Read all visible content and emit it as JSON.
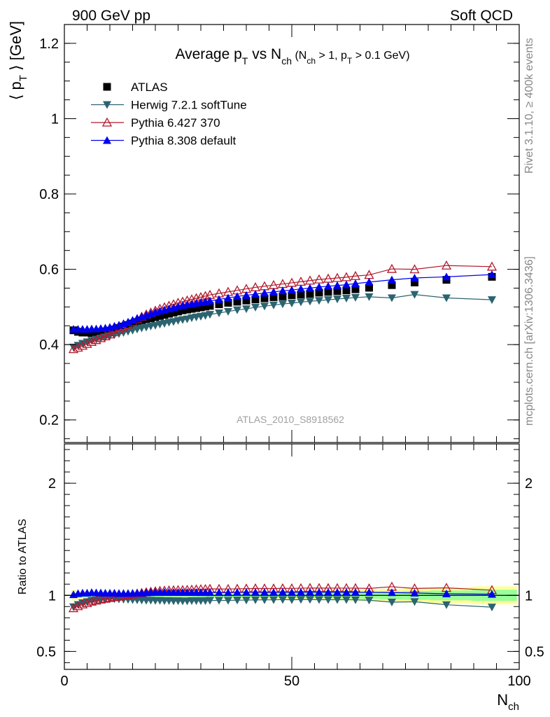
{
  "header": {
    "left": "900 GeV pp",
    "right": "Soft QCD"
  },
  "side_labels": {
    "top": "Rivet 3.1.10, ≥ 400k events",
    "bottom": "mcplots.cern.ch [arXiv:1306.3436]"
  },
  "chart_data": [
    {
      "type": "scatter",
      "panel": "main",
      "title_parts": {
        "main": "Average p",
        "sub_t": "T",
        "vs": " vs N",
        "sub_ch": "ch",
        "cut_open": " (N",
        "cut_sub_ch": "ch",
        "cut_mid": " > 1, p",
        "cut_sub_t": "T",
        "cut_close": " > 0.1 GeV)"
      },
      "ylabel_parts": {
        "open": "⟨ p",
        "sub": "T",
        "close": " ⟩ [GeV]"
      },
      "watermark": "ATLAS_2010_S8918562",
      "xlim": [
        0,
        100
      ],
      "ylim": [
        0.14,
        1.25
      ],
      "yticks": [
        {
          "value": 0.2,
          "label": "0.2"
        },
        {
          "value": 0.4,
          "label": "0.4"
        },
        {
          "value": 0.6,
          "label": "0.6"
        },
        {
          "value": 0.8,
          "label": "0.8"
        },
        {
          "value": 1.0,
          "label": "1"
        },
        {
          "value": 1.2,
          "label": "1.2"
        }
      ],
      "legend_position": "top-left",
      "series": [
        {
          "name": "ATLAS",
          "color": "#000000",
          "marker": "square",
          "line": false,
          "x": [
            2,
            3,
            4,
            5,
            6,
            7,
            8,
            9,
            10,
            11,
            12,
            13,
            14,
            15,
            16,
            17,
            18,
            19,
            20,
            21,
            22,
            23,
            24,
            25,
            26,
            27,
            28,
            29,
            30,
            31,
            32,
            34,
            36,
            38,
            40,
            42,
            44,
            46,
            48,
            50,
            52,
            54,
            56,
            58,
            60,
            62,
            64,
            67,
            72,
            77,
            84,
            94
          ],
          "y": [
            0.438,
            0.434,
            0.432,
            0.432,
            0.431,
            0.432,
            0.433,
            0.435,
            0.437,
            0.44,
            0.444,
            0.448,
            0.452,
            0.456,
            0.46,
            0.464,
            0.467,
            0.47,
            0.473,
            0.476,
            0.479,
            0.482,
            0.485,
            0.488,
            0.491,
            0.493,
            0.495,
            0.497,
            0.499,
            0.501,
            0.503,
            0.507,
            0.511,
            0.514,
            0.517,
            0.52,
            0.523,
            0.526,
            0.528,
            0.531,
            0.533,
            0.535,
            0.538,
            0.54,
            0.542,
            0.544,
            0.547,
            0.551,
            0.558,
            0.565,
            0.572,
            0.58
          ]
        },
        {
          "name": "Herwig 7.2.1 softTune",
          "color": "#2b6470",
          "marker": "triangle-down",
          "line": true,
          "x": [
            2,
            3,
            4,
            5,
            6,
            7,
            8,
            9,
            10,
            11,
            12,
            13,
            14,
            15,
            16,
            17,
            18,
            19,
            20,
            21,
            22,
            23,
            24,
            25,
            26,
            27,
            28,
            29,
            30,
            31,
            32,
            34,
            36,
            38,
            40,
            42,
            44,
            46,
            48,
            50,
            52,
            54,
            56,
            58,
            60,
            62,
            64,
            67,
            72,
            77,
            84,
            94
          ],
          "y": [
            0.393,
            0.398,
            0.403,
            0.407,
            0.411,
            0.414,
            0.417,
            0.42,
            0.423,
            0.426,
            0.429,
            0.432,
            0.435,
            0.438,
            0.441,
            0.444,
            0.446,
            0.449,
            0.451,
            0.454,
            0.456,
            0.459,
            0.461,
            0.464,
            0.466,
            0.468,
            0.471,
            0.473,
            0.475,
            0.477,
            0.48,
            0.484,
            0.488,
            0.492,
            0.495,
            0.499,
            0.502,
            0.505,
            0.508,
            0.51,
            0.513,
            0.515,
            0.517,
            0.519,
            0.521,
            0.523,
            0.525,
            0.527,
            0.524,
            0.533,
            0.524,
            0.519
          ]
        },
        {
          "name": "Pythia 6.427 370",
          "color": "#b2182b",
          "marker": "triangle-up-open",
          "line": true,
          "x": [
            2,
            3,
            4,
            5,
            6,
            7,
            8,
            9,
            10,
            11,
            12,
            13,
            14,
            15,
            16,
            17,
            18,
            19,
            20,
            21,
            22,
            23,
            24,
            25,
            26,
            27,
            28,
            29,
            30,
            31,
            32,
            34,
            36,
            38,
            40,
            42,
            44,
            46,
            48,
            50,
            52,
            54,
            56,
            58,
            60,
            62,
            64,
            67,
            72,
            77,
            84,
            94
          ],
          "y": [
            0.388,
            0.392,
            0.397,
            0.402,
            0.407,
            0.412,
            0.417,
            0.422,
            0.427,
            0.433,
            0.439,
            0.446,
            0.453,
            0.46,
            0.467,
            0.474,
            0.48,
            0.485,
            0.49,
            0.495,
            0.499,
            0.503,
            0.507,
            0.511,
            0.514,
            0.517,
            0.52,
            0.523,
            0.526,
            0.529,
            0.532,
            0.536,
            0.54,
            0.544,
            0.548,
            0.552,
            0.555,
            0.558,
            0.561,
            0.564,
            0.567,
            0.57,
            0.573,
            0.575,
            0.577,
            0.579,
            0.582,
            0.585,
            0.601,
            0.6,
            0.61,
            0.607
          ]
        },
        {
          "name": "Pythia 8.308 default",
          "color": "#0000ee",
          "marker": "triangle-up",
          "line": true,
          "x": [
            2,
            3,
            4,
            5,
            6,
            7,
            8,
            9,
            10,
            11,
            12,
            13,
            14,
            15,
            16,
            17,
            18,
            19,
            20,
            21,
            22,
            23,
            24,
            25,
            26,
            27,
            28,
            29,
            30,
            31,
            32,
            34,
            36,
            38,
            40,
            42,
            44,
            46,
            48,
            50,
            52,
            54,
            56,
            58,
            60,
            62,
            64,
            67,
            72,
            77,
            84,
            94
          ],
          "y": [
            0.441,
            0.441,
            0.441,
            0.441,
            0.442,
            0.442,
            0.443,
            0.444,
            0.446,
            0.449,
            0.452,
            0.456,
            0.46,
            0.465,
            0.47,
            0.474,
            0.478,
            0.482,
            0.486,
            0.489,
            0.492,
            0.495,
            0.498,
            0.501,
            0.504,
            0.506,
            0.508,
            0.51,
            0.512,
            0.514,
            0.516,
            0.52,
            0.524,
            0.528,
            0.531,
            0.534,
            0.537,
            0.54,
            0.543,
            0.545,
            0.548,
            0.55,
            0.553,
            0.555,
            0.557,
            0.559,
            0.562,
            0.566,
            0.572,
            0.577,
            0.58,
            0.586
          ]
        }
      ]
    },
    {
      "type": "scatter",
      "panel": "ratio",
      "ylabel": "Ratio to ATLAS",
      "xlabel_parts": {
        "main": "N",
        "sub": "ch"
      },
      "xlim": [
        0,
        100
      ],
      "ylim": [
        0.34,
        2.35
      ],
      "xticks": [
        {
          "value": 0,
          "label": "0"
        },
        {
          "value": 50,
          "label": "50"
        },
        {
          "value": 100,
          "label": "100"
        }
      ],
      "yticks": [
        {
          "value": 0.5,
          "label": "0.5"
        },
        {
          "value": 1.0,
          "label": "1"
        },
        {
          "value": 2.0,
          "label": "2"
        }
      ],
      "reference_line": 1.0,
      "band_colors": {
        "outer": "#ffff99",
        "inner": "#99ff99"
      },
      "band_edges_x": [
        1.5,
        2.5,
        3.5,
        4.5,
        5.5,
        6.5,
        7.5,
        8.5,
        9.5,
        10.5,
        11.5,
        12.5,
        13.5,
        14.5,
        15.5,
        16.5,
        17.5,
        18.5,
        19.5,
        20.5,
        21.5,
        22.5,
        23.5,
        24.5,
        25.5,
        26.5,
        27.5,
        28.5,
        29.5,
        30.5,
        31.5,
        33,
        35,
        37,
        39,
        41,
        43,
        45,
        47,
        49,
        51,
        53,
        55,
        57,
        59,
        61,
        63,
        65.5,
        69.5,
        74.5,
        80.5,
        89.5,
        99.5
      ],
      "band_outer_halfwidth": [
        0.045,
        0.04,
        0.035,
        0.03,
        0.028,
        0.027,
        0.026,
        0.025,
        0.025,
        0.025,
        0.025,
        0.025,
        0.025,
        0.025,
        0.025,
        0.025,
        0.025,
        0.025,
        0.025,
        0.025,
        0.025,
        0.025,
        0.025,
        0.025,
        0.025,
        0.025,
        0.026,
        0.026,
        0.027,
        0.027,
        0.028,
        0.028,
        0.029,
        0.03,
        0.031,
        0.032,
        0.033,
        0.034,
        0.035,
        0.036,
        0.037,
        0.038,
        0.04,
        0.042,
        0.044,
        0.046,
        0.048,
        0.052,
        0.058,
        0.064,
        0.07,
        0.08
      ],
      "band_inner_halfwidth": [
        0.025,
        0.022,
        0.02,
        0.018,
        0.017,
        0.016,
        0.016,
        0.015,
        0.015,
        0.015,
        0.015,
        0.015,
        0.015,
        0.015,
        0.015,
        0.015,
        0.015,
        0.015,
        0.015,
        0.015,
        0.015,
        0.015,
        0.015,
        0.015,
        0.015,
        0.015,
        0.016,
        0.016,
        0.016,
        0.017,
        0.017,
        0.017,
        0.018,
        0.018,
        0.019,
        0.02,
        0.02,
        0.021,
        0.022,
        0.022,
        0.023,
        0.024,
        0.025,
        0.026,
        0.027,
        0.028,
        0.03,
        0.032,
        0.036,
        0.04,
        0.044,
        0.05
      ]
    }
  ]
}
